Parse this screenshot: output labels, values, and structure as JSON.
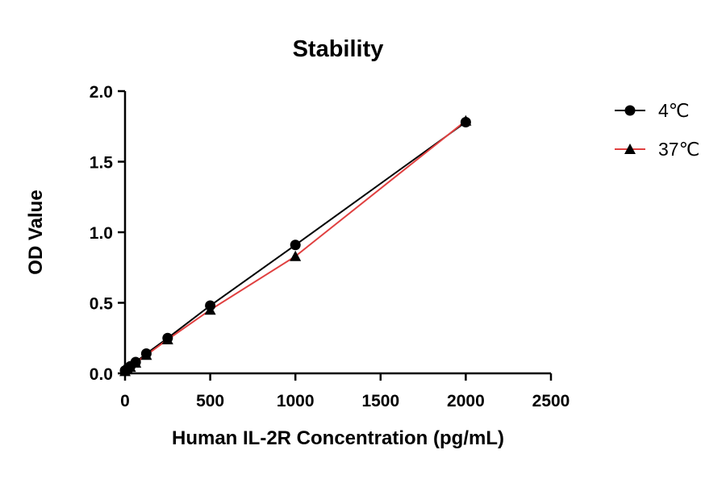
{
  "chart_data": {
    "type": "line",
    "title": "Stability",
    "xlabel": "Human IL-2R Concentration (pg/mL)",
    "ylabel": "OD Value",
    "xlim": [
      0,
      2500
    ],
    "ylim": [
      0,
      2.0
    ],
    "xticks": [
      0,
      500,
      1000,
      1500,
      2000,
      2500
    ],
    "yticks": [
      "0.0",
      "0.5",
      "1.0",
      "1.5",
      "2.0"
    ],
    "grid": false,
    "legend_position": "top-right",
    "series": [
      {
        "name": "4℃",
        "marker": "circle",
        "color": "#000000",
        "line_color": "#000000",
        "x": [
          0,
          15.6,
          31.3,
          62.5,
          125,
          250,
          500,
          1000,
          2000
        ],
        "y": [
          0.02,
          0.035,
          0.05,
          0.08,
          0.14,
          0.25,
          0.48,
          0.91,
          1.78
        ]
      },
      {
        "name": "37℃",
        "marker": "triangle",
        "color": "#000000",
        "line_color": "#e04040",
        "x": [
          0,
          15.6,
          31.3,
          62.5,
          125,
          250,
          500,
          1000,
          2000
        ],
        "y": [
          0.015,
          0.03,
          0.045,
          0.075,
          0.13,
          0.24,
          0.45,
          0.83,
          1.79
        ]
      }
    ]
  }
}
